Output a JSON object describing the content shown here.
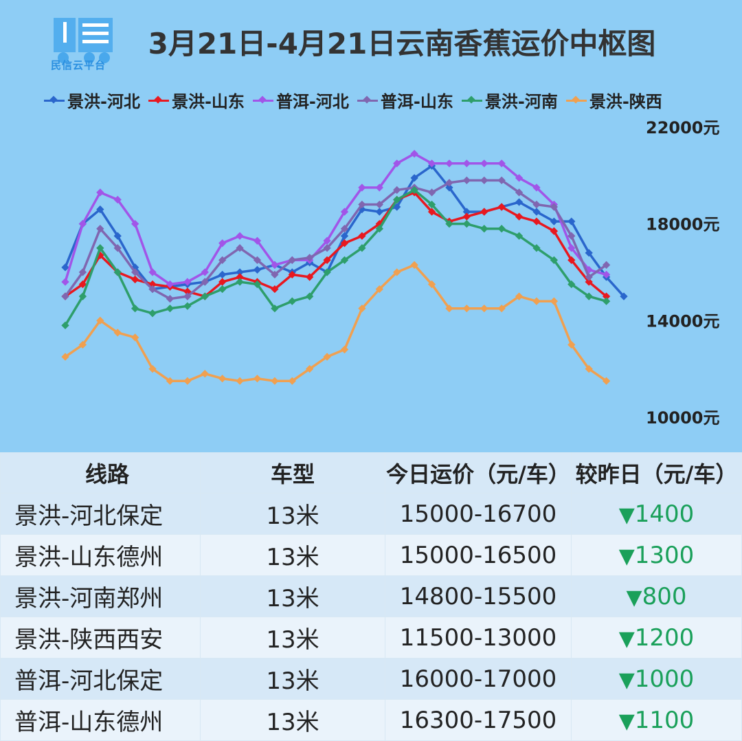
{
  "title": "3月21日-4月21日云南香蕉运价中枢图",
  "logo_text": "民信云平台",
  "chart_data": {
    "type": "line",
    "title": "3月21日-4月21日云南香蕉运价中枢图",
    "yticks": [
      "22000元",
      "18000元",
      "14000元",
      "10000元"
    ],
    "ylim": [
      10000,
      22000
    ],
    "legend_position": "top",
    "series": [
      {
        "name": "景洪-河北",
        "color": "#2a66cc",
        "values": [
          16200,
          18000,
          18600,
          17500,
          16200,
          15300,
          15400,
          15500,
          15600,
          15900,
          16000,
          16100,
          16300,
          16000,
          16400,
          16000,
          17500,
          18600,
          18500,
          18700,
          19900,
          20400,
          19500,
          18500,
          18500,
          18700,
          18900,
          18500,
          18100,
          18100,
          16800,
          15800,
          15000
        ]
      },
      {
        "name": "景洪-山东",
        "color": "#e8181f",
        "values": [
          15000,
          15500,
          16700,
          16000,
          15700,
          15500,
          15400,
          15200,
          15000,
          15600,
          15800,
          15600,
          15300,
          15900,
          15800,
          16500,
          17200,
          17500,
          18000,
          19000,
          19300,
          18500,
          18100,
          18300,
          18500,
          18700,
          18300,
          18100,
          17700,
          16500,
          15600,
          15000,
          null
        ]
      },
      {
        "name": "普洱-河北",
        "color": "#a155e8",
        "values": [
          15600,
          18000,
          19300,
          19000,
          18000,
          16000,
          15500,
          15600,
          16000,
          17200,
          17500,
          17300,
          16300,
          16500,
          16500,
          17300,
          18500,
          19500,
          19500,
          20500,
          20900,
          20500,
          20500,
          20500,
          20500,
          20500,
          19900,
          19500,
          18800,
          17000,
          16100,
          15900,
          null
        ]
      },
      {
        "name": "普洱-山东",
        "color": "#8066b0",
        "values": [
          15000,
          16000,
          17800,
          17000,
          16000,
          15300,
          14900,
          15000,
          15600,
          16500,
          17000,
          16500,
          15900,
          16500,
          16600,
          17000,
          17800,
          18800,
          18800,
          19400,
          19500,
          19300,
          19700,
          19800,
          19800,
          19800,
          19300,
          18800,
          18700,
          17500,
          15800,
          16300,
          null
        ]
      },
      {
        "name": "景洪-河南",
        "color": "#2e9e6b",
        "values": [
          13800,
          15000,
          17000,
          16000,
          14500,
          14300,
          14500,
          14600,
          15000,
          15300,
          15600,
          15500,
          14500,
          14800,
          15000,
          16000,
          16500,
          17000,
          17800,
          19000,
          19400,
          18800,
          18000,
          18000,
          17800,
          17800,
          17500,
          17000,
          16500,
          15500,
          15000,
          14800,
          null
        ]
      },
      {
        "name": "景洪-陕西",
        "color": "#f0a050",
        "values": [
          12500,
          13000,
          14000,
          13500,
          13300,
          12000,
          11500,
          11500,
          11800,
          11600,
          11500,
          11600,
          11500,
          11500,
          12000,
          12500,
          12800,
          14500,
          15300,
          16000,
          16300,
          15500,
          14500,
          14500,
          14500,
          14500,
          15000,
          14800,
          14800,
          13000,
          12000,
          11500,
          null
        ]
      }
    ]
  },
  "table": {
    "headers": [
      "线路",
      "车型",
      "今日运价（元/车）",
      "较昨日（元/车）"
    ],
    "triangle": "▼",
    "rows": [
      {
        "route": "景洪-河北保定",
        "type": "13米",
        "price": "15000-16700",
        "change": "1400"
      },
      {
        "route": "景洪-山东德州",
        "type": "13米",
        "price": "15000-16500",
        "change": "1300"
      },
      {
        "route": "景洪-河南郑州",
        "type": "13米",
        "price": "14800-15500",
        "change": "800"
      },
      {
        "route": "景洪-陕西西安",
        "type": "13米",
        "price": "11500-13000",
        "change": "1200"
      },
      {
        "route": "普洱-河北保定",
        "type": "13米",
        "price": "16000-17000",
        "change": "1000"
      },
      {
        "route": "普洱-山东德州",
        "type": "13米",
        "price": "16300-17500",
        "change": "1100"
      }
    ]
  }
}
